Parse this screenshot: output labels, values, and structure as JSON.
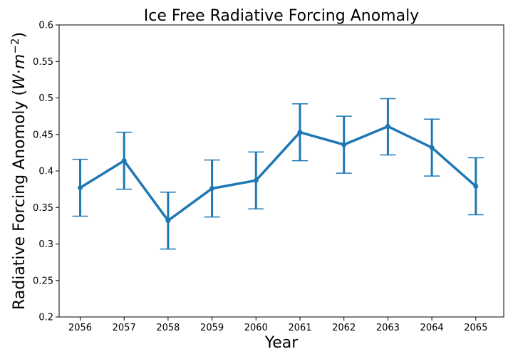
{
  "chart_data": {
    "type": "line",
    "title": "Ice Free Radiative Forcing Anomaly",
    "xlabel": "Year",
    "ylabel_main": "Radiative Forcing Anomoly (",
    "ylabel_unit_w": "W",
    "ylabel_unit_dot": "·",
    "ylabel_unit_m": "m",
    "ylabel_unit_exp": "−2",
    "ylabel_close": ")",
    "x": [
      "2056",
      "2057",
      "2058",
      "2059",
      "2060",
      "2061",
      "2062",
      "2063",
      "2064",
      "2065"
    ],
    "series": [
      {
        "values": [
          0.377,
          0.414,
          0.332,
          0.376,
          0.387,
          0.453,
          0.436,
          0.461,
          0.432,
          0.379
        ],
        "err_low": [
          0.338,
          0.375,
          0.293,
          0.337,
          0.348,
          0.414,
          0.397,
          0.422,
          0.393,
          0.34
        ],
        "err_high": [
          0.416,
          0.453,
          0.371,
          0.415,
          0.426,
          0.492,
          0.475,
          0.499,
          0.471,
          0.418
        ],
        "color": "#1f77b4"
      }
    ],
    "ylim": [
      0.2,
      0.6
    ],
    "yticks": [
      "0.2",
      "0.25",
      "0.3",
      "0.35",
      "0.4",
      "0.45",
      "0.5",
      "0.55",
      "0.6"
    ],
    "grid": false,
    "legend": "none"
  }
}
